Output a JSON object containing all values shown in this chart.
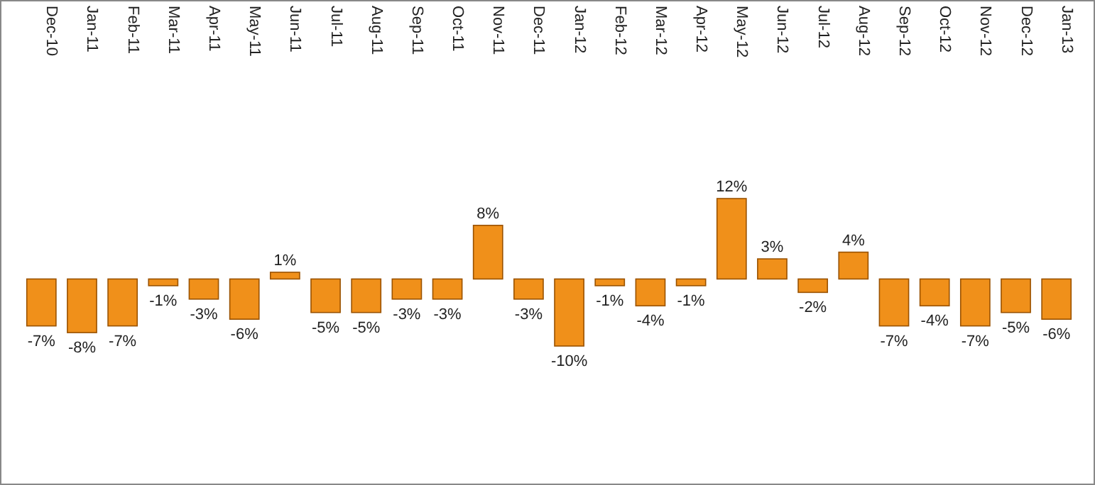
{
  "chart_data": {
    "type": "bar",
    "categories": [
      "Dec-10",
      "Jan-11",
      "Feb-11",
      "Mar-11",
      "Apr-11",
      "May-11",
      "Jun-11",
      "Jul-11",
      "Aug-11",
      "Sep-11",
      "Oct-11",
      "Nov-11",
      "Dec-11",
      "Jan-12",
      "Feb-12",
      "Mar-12",
      "Apr-12",
      "May-12",
      "Jun-12",
      "Jul-12",
      "Aug-12",
      "Sep-12",
      "Oct-12",
      "Nov-12",
      "Dec-12",
      "Jan-13"
    ],
    "values": [
      -7,
      -8,
      -7,
      -1,
      -3,
      -6,
      1,
      -5,
      -5,
      -3,
      -3,
      8,
      -3,
      -10,
      -1,
      -4,
      -1,
      12,
      3,
      -2,
      4,
      -7,
      -4,
      -7,
      -5,
      -6
    ],
    "value_labels": [
      "-7%",
      "-8%",
      "-7%",
      "-1%",
      "-3%",
      "-6%",
      "1%",
      "-5%",
      "-5%",
      "-3%",
      "-3%",
      "8%",
      "-3%",
      "-10%",
      "-1%",
      "-4%",
      "-1%",
      "12%",
      "3%",
      "-2%",
      "4%",
      "-7%",
      "-4%",
      "-7%",
      "-5%",
      "-6%"
    ],
    "color": "#f0901a"
  }
}
